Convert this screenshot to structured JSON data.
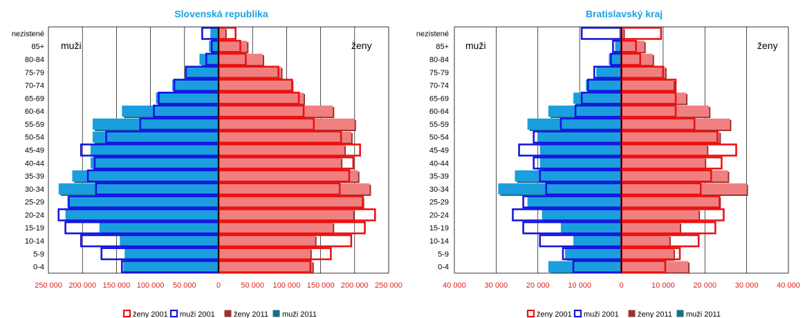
{
  "colors": {
    "title": "#1aa3dd",
    "tick": "#e01e1e",
    "zeny2001": "#ee1111",
    "muzi2001": "#1515e0",
    "zeny2011": "#f08080",
    "zeny2011_shadow": "#9a3434",
    "muzi2011": "#1a9ede",
    "muzi2011_shadow": "#1b6f85"
  },
  "legend": [
    "ženy 2001",
    "muži 2001",
    "ženy 2011",
    "muži 2011"
  ],
  "chart_data": [
    {
      "type": "bar",
      "title": "Slovenská republika",
      "left_label": "muži",
      "right_label": "ženy",
      "xlim": [
        -250000,
        250000
      ],
      "tick_values": [
        -250000,
        -200000,
        -150000,
        -100000,
        -50000,
        0,
        50000,
        100000,
        150000,
        200000,
        250000
      ],
      "tick_labels": [
        "250 000",
        "200 000",
        "150 000",
        "100 000",
        "50 000",
        "0",
        "50 000",
        "100 000",
        "150 000",
        "200 000",
        "250 000"
      ],
      "categories": [
        "nezistené",
        "85+",
        "80-84",
        "75-79",
        "70-74",
        "65-69",
        "60-64",
        "55-59",
        "50-54",
        "45-49",
        "40-44",
        "35-39",
        "30-34",
        "25-29",
        "20-24",
        "15-19",
        "10-14",
        "5-9",
        "0-4"
      ],
      "series": [
        {
          "name": "muži 2011",
          "side": "left",
          "values": [
            12000,
            14000,
            28000,
            48000,
            68000,
            92000,
            142000,
            185000,
            185000,
            188000,
            188000,
            215000,
            235000,
            222000,
            225000,
            175000,
            145000,
            138000,
            140000
          ]
        },
        {
          "name": "ženy 2011",
          "side": "right",
          "values": [
            10000,
            42000,
            65000,
            92000,
            108000,
            125000,
            168000,
            200000,
            195000,
            185000,
            180000,
            205000,
            222000,
            212000,
            198000,
            168000,
            142000,
            135000,
            138000
          ]
        },
        {
          "name": "muži 2001",
          "side": "left",
          "values": [
            24000,
            10000,
            18000,
            48000,
            65000,
            88000,
            95000,
            115000,
            165000,
            202000,
            182000,
            192000,
            180000,
            220000,
            235000,
            225000,
            202000,
            172000,
            142000
          ]
        },
        {
          "name": "ženy 2001",
          "side": "right",
          "values": [
            25000,
            32000,
            40000,
            88000,
            108000,
            118000,
            125000,
            140000,
            180000,
            208000,
            198000,
            192000,
            178000,
            212000,
            230000,
            215000,
            195000,
            165000,
            135000
          ]
        }
      ]
    },
    {
      "type": "bar",
      "title": "Bratislavský kraj",
      "left_label": "muži",
      "right_label": "ženy",
      "xlim": [
        -40000,
        40000
      ],
      "tick_values": [
        -40000,
        -30000,
        -20000,
        -10000,
        0,
        10000,
        20000,
        30000,
        40000
      ],
      "tick_labels": [
        "40 000",
        "30 000",
        "20 000",
        "10 000",
        "0",
        "10 000",
        "20 000",
        "30 000",
        "40 000"
      ],
      "categories": [
        "nezistené",
        "85+",
        "80-84",
        "75-79",
        "70-74",
        "65-69",
        "60-64",
        "55-59",
        "50-54",
        "45-49",
        "40-44",
        "35-39",
        "30-34",
        "25-29",
        "20-24",
        "15-19",
        "10-14",
        "5-9",
        "0-4"
      ],
      "series": [
        {
          "name": "muži 2011",
          "side": "left",
          "values": [
            500,
            1500,
            3000,
            6000,
            8500,
            11500,
            17500,
            22500,
            20000,
            19500,
            19500,
            25500,
            29500,
            22500,
            19000,
            14500,
            11500,
            13500,
            17500
          ]
        },
        {
          "name": "ženy 2011",
          "side": "right",
          "values": [
            500,
            5500,
            7500,
            10500,
            12500,
            15500,
            21000,
            26000,
            23500,
            20500,
            20000,
            25500,
            30000,
            23500,
            18500,
            14000,
            11500,
            12500,
            16000
          ]
        },
        {
          "name": "muži 2001",
          "side": "left",
          "values": [
            9500,
            2000,
            2500,
            6500,
            8000,
            9500,
            11000,
            14500,
            21000,
            24500,
            21000,
            19500,
            18000,
            23500,
            26000,
            23500,
            19500,
            14000,
            11500
          ]
        },
        {
          "name": "ženy 2001",
          "side": "right",
          "values": [
            9500,
            3500,
            4500,
            10000,
            13000,
            13000,
            13000,
            17500,
            23000,
            27500,
            24000,
            21500,
            19000,
            23500,
            24500,
            22500,
            18500,
            14000,
            10500
          ]
        }
      ]
    }
  ]
}
